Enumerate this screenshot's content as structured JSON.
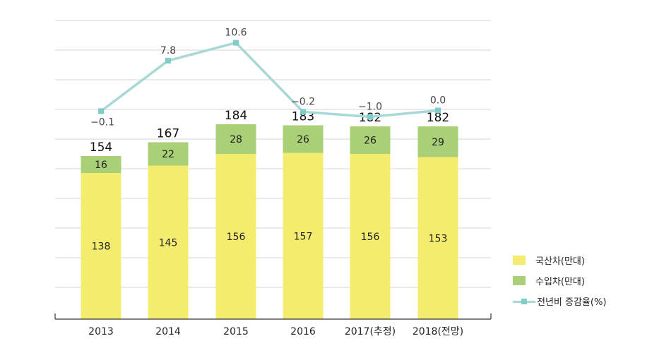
{
  "chart_data": {
    "type": "bar",
    "categories": [
      "2013",
      "2014",
      "2015",
      "2016",
      "2017(추정)",
      "2018(전망)"
    ],
    "series": [
      {
        "name": "국산차(만대)",
        "values": [
          138,
          145,
          156,
          157,
          156,
          153
        ],
        "color": "#f3ec6e"
      },
      {
        "name": "수입차(만대)",
        "values": [
          16,
          22,
          28,
          26,
          26,
          29
        ],
        "color": "#a9cf77"
      }
    ],
    "totals": [
      154,
      167,
      184,
      183,
      182,
      182
    ],
    "line_series": {
      "name": "전년비 증감율(%)",
      "values": [
        -0.1,
        7.8,
        10.6,
        -0.2,
        -1.0,
        0.0
      ],
      "labels": [
        "−0.1",
        "7.8",
        "10.6",
        "−0.2",
        "−1.0",
        "0.0"
      ],
      "color": "#a8d8d6",
      "marker_color": "#7fcccb"
    },
    "bar_axis_range": [
      0,
      200
    ],
    "line_axis_range": [
      -3,
      12
    ],
    "grid": true,
    "legend_position": "bottom-right"
  }
}
